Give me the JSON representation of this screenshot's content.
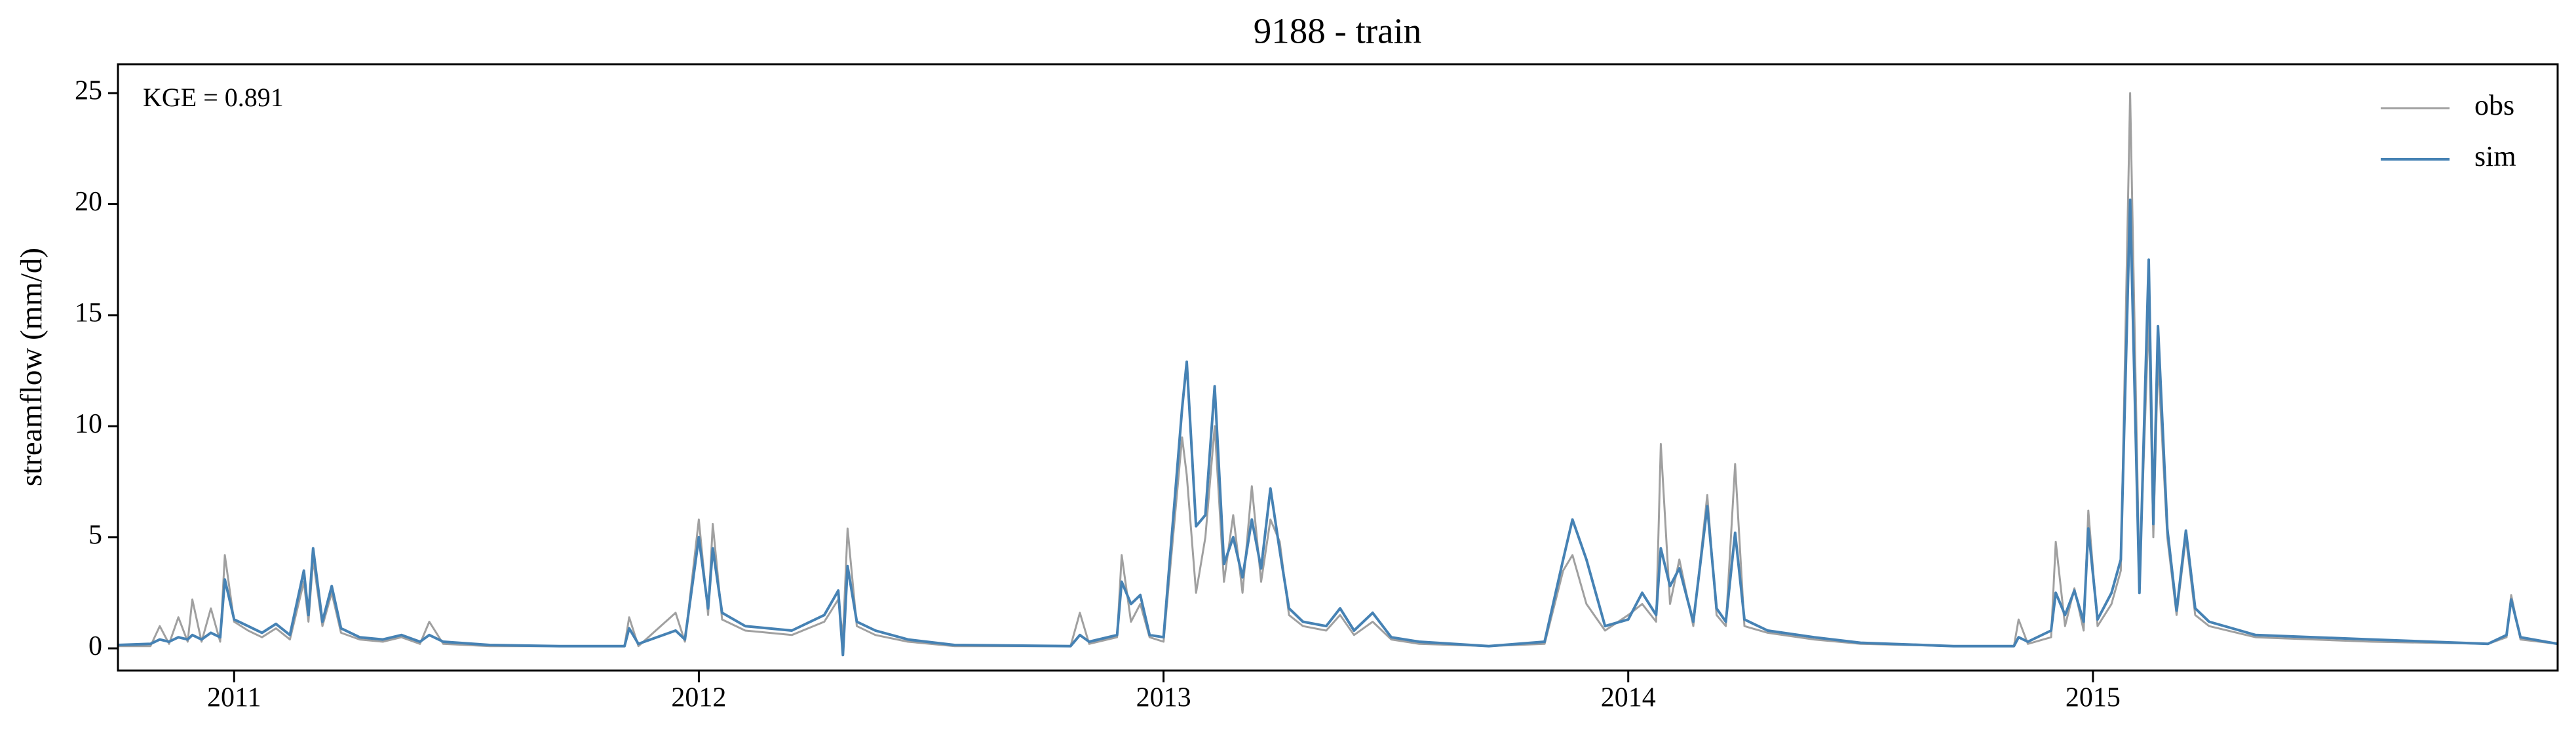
{
  "chart_data": {
    "type": "line",
    "title": "9188 - train",
    "ylabel": "streamflow (mm/d)",
    "annotation": "KGE = 0.891",
    "legend": "upper right",
    "x": [
      2010.75,
      2010.82,
      2010.84,
      2010.86,
      2010.88,
      2010.9,
      2010.91,
      2010.93,
      2010.95,
      2010.97,
      2010.98,
      2011.0,
      2011.03,
      2011.06,
      2011.09,
      2011.12,
      2011.15,
      2011.16,
      2011.17,
      2011.19,
      2011.21,
      2011.23,
      2011.27,
      2011.32,
      2011.36,
      2011.4,
      2011.42,
      2011.45,
      2011.55,
      2011.7,
      2011.84,
      2011.85,
      2011.87,
      2011.95,
      2011.97,
      2012.0,
      2012.02,
      2012.03,
      2012.05,
      2012.1,
      2012.2,
      2012.27,
      2012.3,
      2012.31,
      2012.32,
      2012.34,
      2012.38,
      2012.45,
      2012.55,
      2012.8,
      2012.82,
      2012.84,
      2012.9,
      2012.91,
      2012.93,
      2012.95,
      2012.97,
      2013.0,
      2013.04,
      2013.05,
      2013.07,
      2013.09,
      2013.11,
      2013.13,
      2013.15,
      2013.17,
      2013.19,
      2013.21,
      2013.23,
      2013.25,
      2013.27,
      2013.3,
      2013.35,
      2013.38,
      2013.41,
      2013.45,
      2013.49,
      2013.55,
      2013.7,
      2013.82,
      2013.86,
      2013.88,
      2013.91,
      2013.95,
      2014.0,
      2014.03,
      2014.06,
      2014.07,
      2014.09,
      2014.11,
      2014.14,
      2014.17,
      2014.19,
      2014.21,
      2014.23,
      2014.25,
      2014.3,
      2014.4,
      2014.5,
      2014.7,
      2014.83,
      2014.84,
      2014.86,
      2014.91,
      2014.92,
      2014.94,
      2014.96,
      2014.98,
      2014.99,
      2015.01,
      2015.04,
      2015.06,
      2015.08,
      2015.1,
      2015.12,
      2015.13,
      2015.14,
      2015.16,
      2015.18,
      2015.2,
      2015.22,
      2015.25,
      2015.35,
      2015.6,
      2015.85,
      2015.89,
      2015.9,
      2015.92,
      2016.0
    ],
    "series": [
      {
        "name": "obs",
        "color": "#a0a0a0",
        "values": [
          0.1,
          0.1,
          1.0,
          0.2,
          1.4,
          0.3,
          2.2,
          0.3,
          1.8,
          0.3,
          4.2,
          1.2,
          0.8,
          0.5,
          0.9,
          0.4,
          3.0,
          1.2,
          4.0,
          1.0,
          2.5,
          0.7,
          0.4,
          0.3,
          0.5,
          0.2,
          1.2,
          0.2,
          0.1,
          0.1,
          0.1,
          1.4,
          0.1,
          1.6,
          0.3,
          5.8,
          1.5,
          5.6,
          1.3,
          0.8,
          0.6,
          1.2,
          2.2,
          0.5,
          5.4,
          1.0,
          0.6,
          0.3,
          0.1,
          0.1,
          1.6,
          0.2,
          0.5,
          4.2,
          1.2,
          2.0,
          0.5,
          0.3,
          9.5,
          7.8,
          2.5,
          5.0,
          10.0,
          3.0,
          6.0,
          2.5,
          7.3,
          3.0,
          5.8,
          4.8,
          1.5,
          1.0,
          0.8,
          1.5,
          0.6,
          1.2,
          0.4,
          0.2,
          0.1,
          0.2,
          3.5,
          4.2,
          2.0,
          0.8,
          1.5,
          2.0,
          1.2,
          9.2,
          2.0,
          4.0,
          1.0,
          6.9,
          1.5,
          1.0,
          8.3,
          1.0,
          0.7,
          0.4,
          0.2,
          0.1,
          0.1,
          1.3,
          0.2,
          0.5,
          4.8,
          1.0,
          2.7,
          0.8,
          6.2,
          1.0,
          2.0,
          3.5,
          25.0,
          3.0,
          15.0,
          5.0,
          13.0,
          5.0,
          1.5,
          5.0,
          1.5,
          1.0,
          0.5,
          0.3,
          0.2,
          0.5,
          2.4,
          0.4,
          0.2
        ]
      },
      {
        "name": "sim",
        "color": "#4682b4",
        "values": [
          0.15,
          0.2,
          0.4,
          0.3,
          0.5,
          0.4,
          0.6,
          0.4,
          0.7,
          0.5,
          3.1,
          1.3,
          1.0,
          0.7,
          1.1,
          0.6,
          3.5,
          1.5,
          4.5,
          1.2,
          2.8,
          0.9,
          0.5,
          0.4,
          0.6,
          0.3,
          0.6,
          0.3,
          0.15,
          0.1,
          0.1,
          0.9,
          0.2,
          0.8,
          0.4,
          5.0,
          1.8,
          4.5,
          1.6,
          1.0,
          0.8,
          1.5,
          2.6,
          -0.3,
          3.7,
          1.2,
          0.8,
          0.4,
          0.15,
          0.1,
          0.6,
          0.3,
          0.6,
          3.0,
          2.0,
          2.4,
          0.6,
          0.5,
          10.8,
          12.9,
          5.5,
          6.0,
          11.8,
          3.8,
          5.0,
          3.2,
          5.8,
          3.6,
          7.2,
          4.4,
          1.8,
          1.2,
          1.0,
          1.8,
          0.8,
          1.6,
          0.5,
          0.3,
          0.1,
          0.3,
          4.0,
          5.8,
          4.0,
          1.0,
          1.3,
          2.5,
          1.5,
          4.5,
          2.8,
          3.6,
          1.2,
          6.4,
          1.8,
          1.2,
          5.2,
          1.3,
          0.8,
          0.5,
          0.25,
          0.1,
          0.1,
          0.5,
          0.3,
          0.8,
          2.5,
          1.5,
          2.6,
          1.2,
          5.4,
          1.3,
          2.5,
          4.0,
          20.2,
          2.5,
          17.5,
          5.6,
          14.5,
          5.4,
          1.7,
          5.3,
          1.8,
          1.2,
          0.6,
          0.4,
          0.2,
          0.6,
          2.2,
          0.5,
          0.2
        ]
      }
    ],
    "xlim": [
      2010.75,
      2016.0
    ],
    "xticks": [
      2011,
      2012,
      2013,
      2014,
      2015
    ],
    "ylim": [
      -1,
      26.3
    ],
    "yticks": [
      0,
      5,
      10,
      15,
      20,
      25
    ]
  }
}
